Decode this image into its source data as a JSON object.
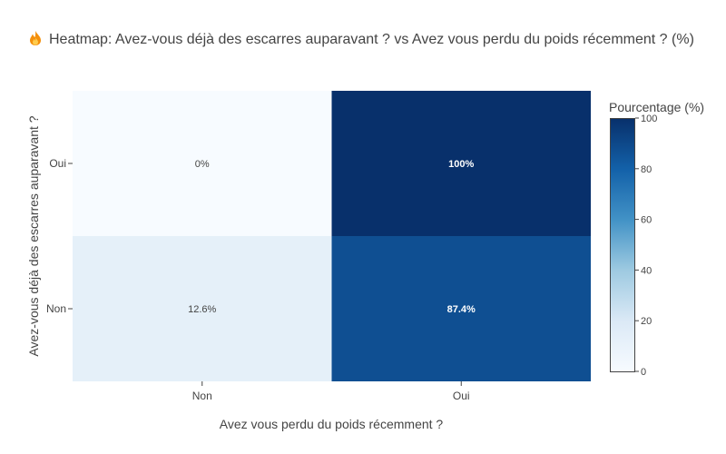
{
  "chart_data": {
    "type": "heatmap",
    "title": "Heatmap: Avez-vous déjà des escarres auparavant ? vs Avez vous perdu du poids récemment ? (%)",
    "xlabel": "Avez vous perdu du poids récemment ?",
    "ylabel": "Avez-vous déjà des escarres auparavant ?",
    "x_categories": [
      "Non",
      "Oui"
    ],
    "y_categories": [
      "Non",
      "Oui"
    ],
    "z": [
      [
        12.6,
        87.4
      ],
      [
        0,
        100
      ]
    ],
    "cell_labels": [
      [
        "12.6%",
        "87.4%"
      ],
      [
        "0%",
        "100%"
      ]
    ],
    "colorbar": {
      "title": "Pourcentage (%)",
      "range": [
        0,
        100
      ],
      "ticks": [
        "0",
        "20",
        "40",
        "60",
        "80",
        "100"
      ],
      "colorscale": "Blues"
    },
    "title_icon": "fire-icon"
  }
}
